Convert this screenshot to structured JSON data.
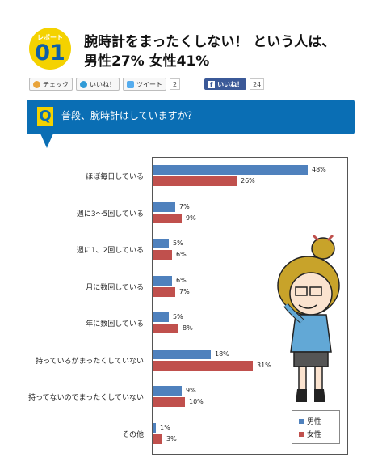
{
  "header": {
    "badge_label": "レポート",
    "badge_number": "01",
    "headline_line1": "腕時計をまったくしない！ という人は、",
    "headline_line2": "男性27% 女性41%"
  },
  "social": {
    "check_label": "チェック",
    "iine_label": "いいね！",
    "tweet_label": "ツイート",
    "tweet_count": "2",
    "fb_label": "いいね！",
    "fb_count": "24"
  },
  "question": {
    "icon": "Q",
    "text": "普段、腕時計はしていますか？"
  },
  "chart_data": {
    "type": "bar",
    "orientation": "horizontal",
    "categories": [
      "ほぼ毎日している",
      "週に3～5回している",
      "週に1、2回している",
      "月に数回している",
      "年に数回している",
      "持っているがまったくしていない",
      "持ってないのでまったくしていない",
      "その他"
    ],
    "series": [
      {
        "name": "男性",
        "color": "#4f81bd",
        "values": [
          48,
          7,
          5,
          6,
          5,
          18,
          9,
          1
        ]
      },
      {
        "name": "女性",
        "color": "#c0504d",
        "values": [
          26,
          9,
          6,
          7,
          8,
          31,
          10,
          3
        ]
      }
    ],
    "unit": "%",
    "value_labels": {
      "male": [
        "48%",
        "7%",
        "5%",
        "6%",
        "5%",
        "18%",
        "9%",
        "1%"
      ],
      "female": [
        "26%",
        "9%",
        "6%",
        "7%",
        "8%",
        "31%",
        "10%",
        "3%"
      ]
    },
    "legend_position": "bottom-right",
    "grid": false
  }
}
